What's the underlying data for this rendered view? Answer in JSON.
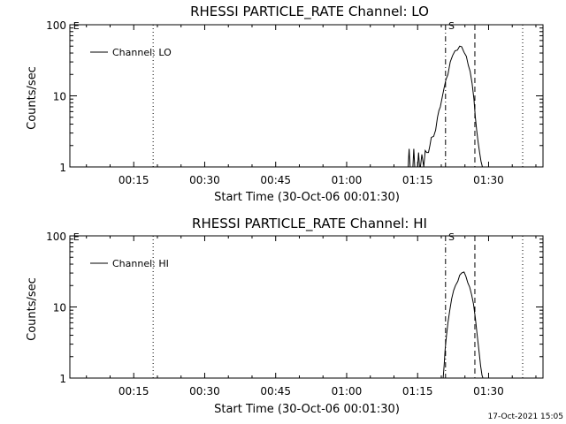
{
  "footer": {
    "timestamp": "17-Oct-2021 15:05"
  },
  "chart_data": [
    {
      "type": "line",
      "title": "RHESSI PARTICLE_RATE Channel: LO",
      "xlabel": "Start Time (30-Oct-06 00:01:30)",
      "ylabel": "Counts/sec",
      "ylog": true,
      "ylim": [
        1,
        100
      ],
      "xlim_min": [
        1.5,
        101.5
      ],
      "xticks_min": [
        15,
        30,
        45,
        60,
        75,
        90
      ],
      "xtick_labels": [
        "00:15",
        "00:30",
        "00:45",
        "01:00",
        "01:15",
        "01:30"
      ],
      "ytick_labels": [
        "1",
        "10",
        "100"
      ],
      "grid": false,
      "legend": {
        "position": "top-left",
        "entries": [
          "Channel: LO"
        ]
      },
      "markers": [
        {
          "x": 19.1,
          "style": "dotted",
          "label": ""
        },
        {
          "x": 80.9,
          "style": "dashdot",
          "label": ""
        },
        {
          "x": 87.1,
          "style": "dashed",
          "label": ""
        },
        {
          "x": 97.2,
          "style": "dotted",
          "label": ""
        }
      ],
      "marker_texts": [
        {
          "text": "E",
          "x": 2.2,
          "y": 87
        },
        {
          "text": "S",
          "x": 81.5,
          "y": 87
        }
      ],
      "series": [
        {
          "name": "Channel: LO",
          "x": [
            73.0,
            73.2,
            73.4,
            73.6,
            74.0,
            74.2,
            74.4,
            75.0,
            75.2,
            75.4,
            75.6,
            75.9,
            76.3,
            76.6,
            76.9,
            77.3,
            77.6,
            77.9,
            78.4,
            78.8,
            79.2,
            79.5,
            79.8,
            80.2,
            80.6,
            81.0,
            81.4,
            81.9,
            82.4,
            82.9,
            83.4,
            83.9,
            84.3,
            84.8,
            85.3,
            85.7,
            86.1,
            86.5,
            86.9,
            87.2,
            87.5,
            87.8,
            88.1,
            88.4,
            88.7,
            88.9,
            89.1
          ],
          "y": [
            1.0,
            1.8,
            1.0,
            1.0,
            1.0,
            1.8,
            1.0,
            1.0,
            1.6,
            1.0,
            1.0,
            1.5,
            1.0,
            1.7,
            1.6,
            1.6,
            2.0,
            2.6,
            2.7,
            3.3,
            5.0,
            6.2,
            7.0,
            9.5,
            13.0,
            17.0,
            20.0,
            30.0,
            37.0,
            43.0,
            44.0,
            50.0,
            49.0,
            41.0,
            36.0,
            27.0,
            22.0,
            15.0,
            9.0,
            5.0,
            3.2,
            2.2,
            1.6,
            1.2,
            1.0,
            1.0,
            1.0
          ]
        }
      ]
    },
    {
      "type": "line",
      "title": "RHESSI PARTICLE_RATE Channel: HI",
      "xlabel": "Start Time (30-Oct-06 00:01:30)",
      "ylabel": "Counts/sec",
      "ylog": true,
      "ylim": [
        1,
        100
      ],
      "xlim_min": [
        1.5,
        101.5
      ],
      "xticks_min": [
        15,
        30,
        45,
        60,
        75,
        90
      ],
      "xtick_labels": [
        "00:15",
        "00:30",
        "00:45",
        "01:00",
        "01:15",
        "01:30"
      ],
      "ytick_labels": [
        "1",
        "10",
        "100"
      ],
      "grid": false,
      "legend": {
        "position": "top-left",
        "entries": [
          "Channel: HI"
        ]
      },
      "markers": [
        {
          "x": 19.1,
          "style": "dotted",
          "label": ""
        },
        {
          "x": 80.9,
          "style": "dashdot",
          "label": ""
        },
        {
          "x": 87.1,
          "style": "dashed",
          "label": ""
        },
        {
          "x": 97.2,
          "style": "dotted",
          "label": ""
        }
      ],
      "marker_texts": [
        {
          "text": "E",
          "x": 2.2,
          "y": 87
        },
        {
          "text": "S",
          "x": 81.5,
          "y": 87
        }
      ],
      "series": [
        {
          "name": "Channel: HI",
          "x": [
            80.4,
            80.6,
            80.8,
            81.1,
            81.4,
            81.8,
            82.2,
            82.6,
            83.0,
            83.5,
            83.9,
            84.3,
            84.8,
            85.2,
            85.6,
            86.0,
            86.4,
            86.8,
            87.2,
            87.6,
            88.0,
            88.3,
            88.6,
            88.8
          ],
          "y": [
            1.0,
            1.5,
            2.5,
            4.0,
            6.0,
            9.0,
            13.0,
            17.0,
            20.0,
            23.0,
            28.0,
            30.0,
            31.0,
            27.0,
            22.0,
            19.0,
            15.0,
            11.0,
            7.0,
            4.0,
            2.3,
            1.5,
            1.1,
            1.0
          ]
        }
      ]
    }
  ]
}
